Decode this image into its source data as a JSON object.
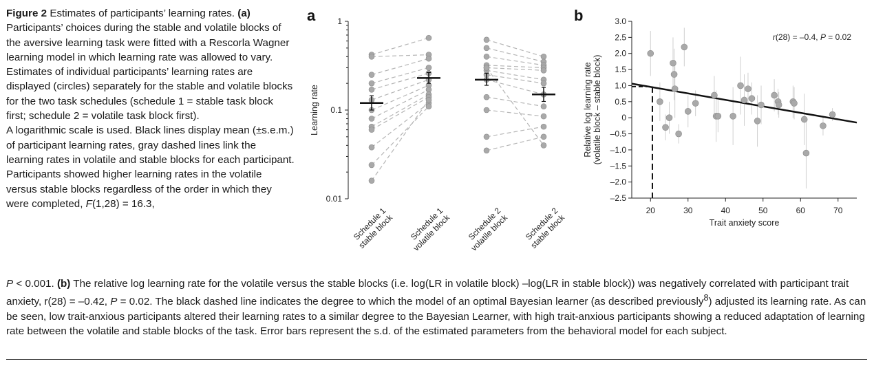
{
  "caption": {
    "figure_label": "Figure 2",
    "title": "Estimates of participants’ learning rates.",
    "a_label": "(a)",
    "a_text": "Participants’ choices during the stable and volatile blocks of the aversive learning task were fitted with a Rescorla Wagner learning model in which learning rate was allowed to vary. Estimates of individual participants’ learning rates are displayed (circles) separately for the stable and volatile blocks for the two task schedules (schedule 1 = stable task block first; schedule 2 = volatile task block first).",
    "a_text2": "A logarithmic scale is used. Black lines display mean (±s.e.m.) of participant learning rates, gray dashed lines link the learning rates in volatile and stable blocks for each participant. Participants showed higher learning rates in the volatile versus stable blocks regardless of the order in which they were completed,",
    "stat_a_F": "F",
    "stat_a_df": "(1,28) = 16.3,",
    "stat_a_P": "P",
    "stat_a_pval": "< 0.001.",
    "b_label": "(b)",
    "b_text1": "The relative log learning rate for the volatile versus the stable blocks (i.e. log(LR in volatile block) –log(LR in stable block)) was negatively correlated with participant trait anxiety, r(28) = –0.42,",
    "b_P": "P",
    "b_text2": "= 0.02. The black dashed line indicates the degree to which the model of an optimal Bayesian learner (as described previously",
    "b_ref": "8",
    "b_text3": ") adjusted its learning rate. As can be seen, low trait-anxious participants altered their learning rates to a similar degree to the Bayesian Learner, with high trait-anxious participants showing a reduced adaptation of learning rate between the volatile and stable blocks of the task. Error bars represent the s.d. of the estimated parameters from the behavioral model for each subject."
  },
  "chart_data": [
    {
      "panel": "a",
      "type": "scatter",
      "yscale": "log",
      "ylim": [
        0.01,
        1
      ],
      "ylabel": "Learning rate",
      "ytick_labels": [
        "1",
        "0.1",
        "0.01"
      ],
      "ytick_values": [
        1,
        0.1,
        0.01
      ],
      "categories": [
        "Schedule 1 stable block",
        "Schedule 1 volatile block",
        "Schedule 2 volatile block",
        "Schedule 2 stable block"
      ],
      "category_lines": [
        [
          "Schedule 1",
          "stable block"
        ],
        [
          "Schedule 1",
          "volatile block"
        ],
        [
          "Schedule 2",
          "volatile block"
        ],
        [
          "Schedule 2",
          "stable block"
        ]
      ],
      "pairs": [
        {
          "schedule": 1,
          "stable": [
            0.42,
            0.4,
            0.25,
            0.2,
            0.17,
            0.13,
            0.1,
            0.08,
            0.065,
            0.06,
            0.038,
            0.024,
            0.016
          ],
          "volatile": [
            0.65,
            0.42,
            0.38,
            0.3,
            0.26,
            0.22,
            0.19,
            0.17,
            0.15,
            0.14,
            0.12,
            0.11,
            0.13
          ]
        },
        {
          "schedule": 2,
          "volatile": [
            0.62,
            0.5,
            0.4,
            0.32,
            0.3,
            0.28,
            0.25,
            0.22,
            0.14,
            0.1,
            0.05,
            0.035,
            0.3
          ],
          "stable": [
            0.4,
            0.35,
            0.32,
            0.3,
            0.28,
            0.22,
            0.2,
            0.15,
            0.11,
            0.085,
            0.065,
            0.05,
            0.04
          ]
        }
      ],
      "means": [
        {
          "category": "Schedule 1 stable block",
          "mean": 0.12,
          "sem_low": 0.1,
          "sem_high": 0.145
        },
        {
          "category": "Schedule 1 volatile block",
          "mean": 0.23,
          "sem_low": 0.2,
          "sem_high": 0.265
        },
        {
          "category": "Schedule 2 volatile block",
          "mean": 0.22,
          "sem_low": 0.19,
          "sem_high": 0.26
        },
        {
          "category": "Schedule 2 stable block",
          "mean": 0.15,
          "sem_low": 0.125,
          "sem_high": 0.18
        }
      ],
      "colors": {
        "points": "#a9a9a9",
        "dashed": "#b5b5b5",
        "mean": "#111111"
      }
    },
    {
      "panel": "b",
      "type": "scatter",
      "xlabel": "Trait anxiety score",
      "ylabel_lines": [
        "Relative log learning rate",
        "(volatile block – stable block)"
      ],
      "xlim": [
        15,
        75
      ],
      "ylim": [
        -2.5,
        3.0
      ],
      "xticks": [
        20,
        30,
        40,
        50,
        60,
        70
      ],
      "yticks": [
        3.0,
        2.5,
        2.0,
        1.5,
        1.0,
        0.5,
        0,
        -0.5,
        -1.0,
        -1.5,
        -2.0,
        -2.5
      ],
      "ytick_labels": [
        "3.0",
        "2.5",
        "2.0",
        "1.5",
        "1.0",
        "0.5",
        "0",
        "–0.5",
        "–1.0",
        "–1.5",
        "–2.0",
        "–2.5"
      ],
      "annotation": {
        "r_label": "r",
        "r_text": "(28) = –0.4,",
        "p_label": "P",
        "p_text": "= 0.02"
      },
      "points": [
        {
          "x": 20,
          "y": 2.0,
          "sd": 0.7
        },
        {
          "x": 22.5,
          "y": 0.5,
          "sd": 0.6
        },
        {
          "x": 24,
          "y": -0.3,
          "sd": 0.4
        },
        {
          "x": 25,
          "y": 0.0,
          "sd": 0.5
        },
        {
          "x": 26,
          "y": 1.7,
          "sd": 0.8
        },
        {
          "x": 26.3,
          "y": 1.35,
          "sd": 0.8
        },
        {
          "x": 26.5,
          "y": 0.9,
          "sd": 0.9
        },
        {
          "x": 27.5,
          "y": -0.5,
          "sd": 0.3
        },
        {
          "x": 29,
          "y": 2.2,
          "sd": 0.6
        },
        {
          "x": 30,
          "y": 0.2,
          "sd": 0.5
        },
        {
          "x": 32,
          "y": 0.45,
          "sd": 0.4
        },
        {
          "x": 37,
          "y": 0.7,
          "sd": 0.6
        },
        {
          "x": 37.5,
          "y": 0.05,
          "sd": 0.8
        },
        {
          "x": 38,
          "y": 0.05,
          "sd": 0.5
        },
        {
          "x": 42,
          "y": 0.05,
          "sd": 0.9
        },
        {
          "x": 44,
          "y": 1.0,
          "sd": 0.9
        },
        {
          "x": 45,
          "y": 0.55,
          "sd": 0.8
        },
        {
          "x": 46,
          "y": 0.9,
          "sd": 0.5
        },
        {
          "x": 47,
          "y": 0.6,
          "sd": 0.5
        },
        {
          "x": 48.5,
          "y": -0.1,
          "sd": 0.8
        },
        {
          "x": 49.5,
          "y": 0.4,
          "sd": 0.6
        },
        {
          "x": 53,
          "y": 0.7,
          "sd": 0.5
        },
        {
          "x": 54,
          "y": 0.5,
          "sd": 0.4
        },
        {
          "x": 54.2,
          "y": 0.4,
          "sd": 0.4
        },
        {
          "x": 58,
          "y": 0.5,
          "sd": 0.5
        },
        {
          "x": 58.3,
          "y": 0.45,
          "sd": 0.5
        },
        {
          "x": 61,
          "y": -0.05,
          "sd": 0.8
        },
        {
          "x": 61.5,
          "y": -1.1,
          "sd": 1.1
        },
        {
          "x": 66,
          "y": -0.25,
          "sd": 0.3
        },
        {
          "x": 68.5,
          "y": 0.1,
          "sd": 0.2
        }
      ],
      "regression": {
        "x": [
          15,
          75
        ],
        "y": [
          1.06,
          -0.15
        ]
      },
      "bayesian_learner": {
        "x": 20.5,
        "y": 0.97
      },
      "colors": {
        "points": "#a9a9a9",
        "error": "#cfcfcf",
        "regression": "#111111",
        "dashed": "#111111"
      }
    }
  ]
}
